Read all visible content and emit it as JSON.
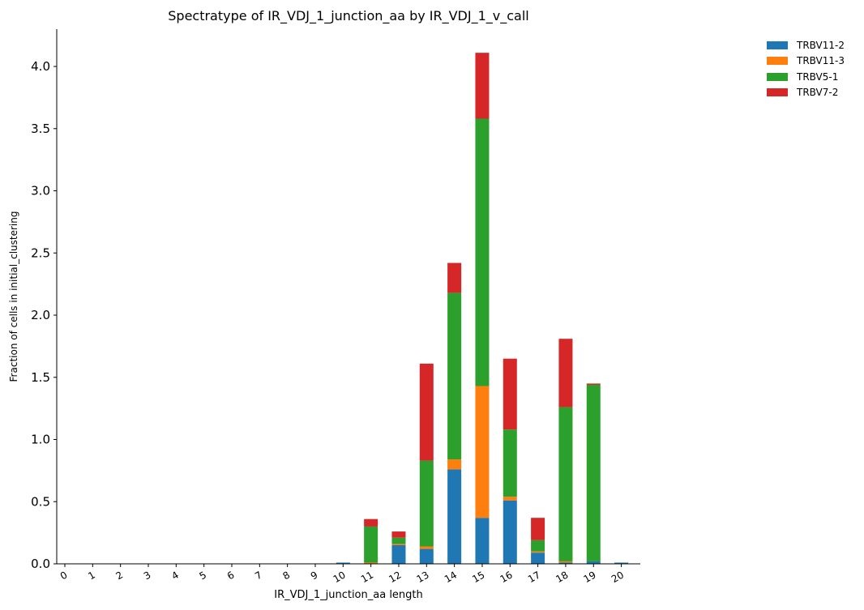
{
  "chart_data": {
    "type": "bar",
    "stacked": true,
    "title": "Spectratype of IR_VDJ_1_junction_aa by IR_VDJ_1_v_call",
    "xlabel": "IR_VDJ_1_junction_aa length",
    "ylabel": "Fraction of cells in initial_clustering",
    "ylim": [
      0,
      4.3
    ],
    "yticks": [
      "0.0",
      "0.5",
      "1.0",
      "1.5",
      "2.0",
      "2.5",
      "3.0",
      "3.5",
      "4.0"
    ],
    "categories": [
      "0",
      "1",
      "2",
      "3",
      "4",
      "5",
      "6",
      "7",
      "8",
      "9",
      "10",
      "11",
      "12",
      "13",
      "14",
      "15",
      "16",
      "17",
      "18",
      "19",
      "20"
    ],
    "series": [
      {
        "name": "TRBV11-2",
        "color": "#1f77b4",
        "values": [
          0,
          0,
          0,
          0,
          0,
          0,
          0,
          0,
          0,
          0,
          0.01,
          0,
          0.15,
          0.12,
          0.76,
          0.37,
          0.51,
          0.09,
          0.01,
          0.02,
          0.01
        ]
      },
      {
        "name": "TRBV11-3",
        "color": "#ff7f0e",
        "values": [
          0,
          0,
          0,
          0,
          0,
          0,
          0,
          0,
          0,
          0,
          0,
          0.01,
          0.01,
          0.02,
          0.08,
          1.06,
          0.03,
          0.01,
          0.01,
          0,
          0
        ]
      },
      {
        "name": "TRBV5-1",
        "color": "#2ca02c",
        "values": [
          0,
          0,
          0,
          0,
          0,
          0,
          0,
          0,
          0,
          0,
          0,
          0.29,
          0.05,
          0.69,
          1.34,
          2.15,
          0.54,
          0.09,
          1.24,
          1.42,
          0
        ]
      },
      {
        "name": "TRBV7-2",
        "color": "#d62728",
        "values": [
          0,
          0,
          0,
          0,
          0,
          0,
          0,
          0,
          0,
          0,
          0,
          0.06,
          0.05,
          0.78,
          0.24,
          0.53,
          0.57,
          0.18,
          0.55,
          0.01,
          0
        ]
      }
    ],
    "legend_position": "top-right",
    "grid": false
  }
}
